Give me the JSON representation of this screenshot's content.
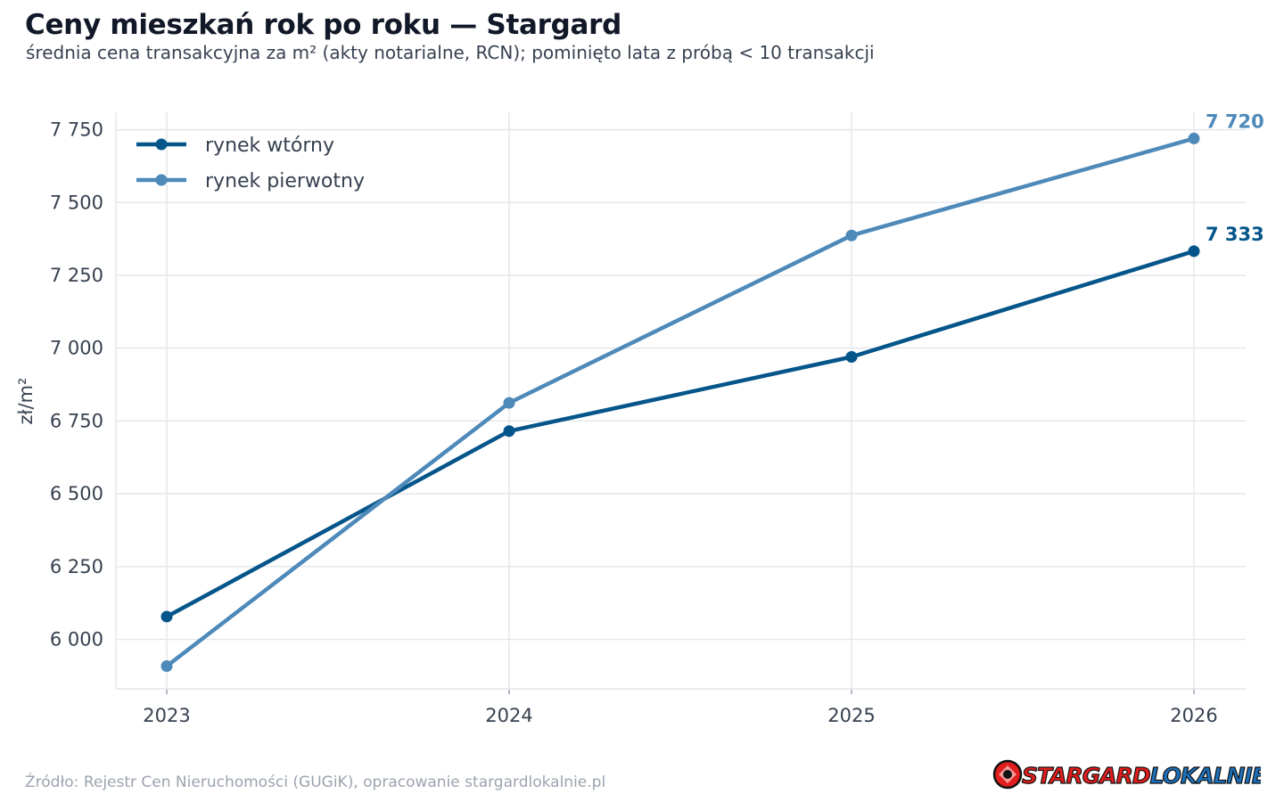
{
  "header": {
    "title": "Ceny mieszkań rok po roku — Stargard",
    "subtitle": "średnia cena transakcyjna za m² (akty notarialne, RCN); pominięto lata z próbą < 10 transakcji"
  },
  "footer": {
    "source": "Źródło: Rejestr Cen Nieruchomości (GUGiK), opracowanie stargardlokalnie.pl",
    "logo_text_part1": "STARGARD",
    "logo_text_part2": "LOKALNIE.PL"
  },
  "colors": {
    "secondary": "#04558a",
    "primary": "#4d89b9",
    "grid": "#e5e7eb",
    "text": "#374151",
    "logo_red": "#e11d1d",
    "logo_blue": "#1d6fb8"
  },
  "chart_data": {
    "type": "line",
    "title": "Ceny mieszkań rok po roku — Stargard",
    "subtitle": "średnia cena transakcyjna za m² (akty notarialne, RCN); pominięto lata z próbą < 10 transakcji",
    "xlabel": "",
    "ylabel": "zł/m²",
    "x": [
      "2023",
      "2024",
      "2025",
      "2026"
    ],
    "ylim": [
      5830,
      7810
    ],
    "yticks": [
      6000,
      6250,
      6500,
      6750,
      7000,
      7250,
      7500,
      7750
    ],
    "ytick_labels": [
      "6 000",
      "6 250",
      "6 500",
      "6 750",
      "7 000",
      "7 250",
      "7 500",
      "7 750"
    ],
    "grid": true,
    "legend_position": "top-left",
    "series": [
      {
        "name": "rynek wtórny",
        "color": "#04558a",
        "values": [
          6078,
          6715,
          6970,
          7333
        ],
        "end_label": "7 333"
      },
      {
        "name": "rynek pierwotny",
        "color": "#4d89b9",
        "values": [
          5908,
          6812,
          7387,
          7720
        ],
        "end_label": "7 720"
      }
    ]
  }
}
